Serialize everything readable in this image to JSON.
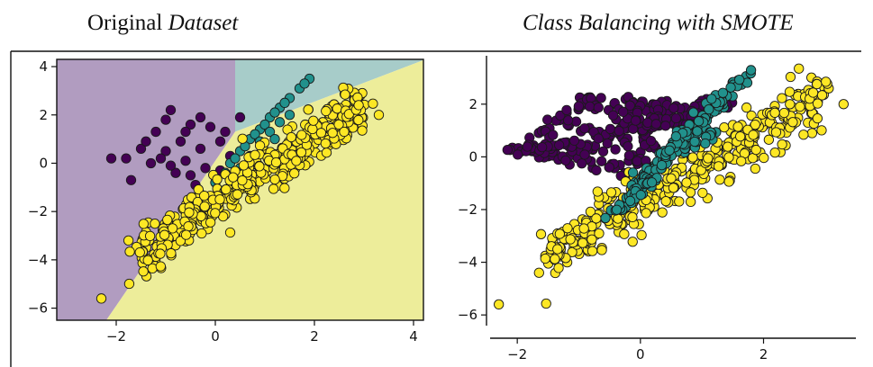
{
  "panels": {
    "left_title_plain": "Original ",
    "left_title_italic": "Dataset",
    "right_title": "Class Balancing with SMOTE"
  },
  "colors": {
    "class_0": "#440154",
    "class_1": "#21918c",
    "class_2": "#fde725",
    "region_0": "#b19cc0",
    "region_1": "#a7ccc9",
    "region_2": "#eded9a"
  },
  "chart_data": [
    {
      "type": "scatter",
      "title": "Original Dataset",
      "xlabel": "",
      "ylabel": "",
      "xlim": [
        -3.2,
        4.2
      ],
      "ylim": [
        -6.5,
        4.3
      ],
      "xticks": [
        -2,
        0,
        2,
        4
      ],
      "yticks": [
        -6,
        -4,
        -2,
        0,
        2,
        4
      ],
      "decision_regions": true,
      "series": [
        {
          "class": 0,
          "points": [
            [
              -0.9,
              2.2
            ],
            [
              -0.5,
              1.6
            ],
            [
              -1.2,
              1.3
            ],
            [
              -0.7,
              0.9
            ],
            [
              -0.3,
              0.6
            ],
            [
              -1.5,
              0.6
            ],
            [
              -1.0,
              0.5
            ],
            [
              -0.6,
              0.1
            ],
            [
              -1.3,
              0.0
            ],
            [
              -0.2,
              -0.2
            ],
            [
              -0.8,
              -0.4
            ],
            [
              -1.8,
              0.2
            ],
            [
              -2.1,
              0.2
            ],
            [
              -1.7,
              -0.7
            ],
            [
              -0.5,
              -0.5
            ],
            [
              0.1,
              -0.3
            ],
            [
              0.2,
              1.3
            ],
            [
              0.5,
              1.9
            ],
            [
              0.1,
              0.9
            ],
            [
              -0.3,
              1.9
            ],
            [
              -1.1,
              0.2
            ],
            [
              -0.4,
              -0.9
            ],
            [
              -0.9,
              -0.1
            ],
            [
              -1.4,
              0.9
            ],
            [
              0.3,
              0.3
            ],
            [
              -0.1,
              1.5
            ],
            [
              -0.6,
              1.3
            ],
            [
              -1.0,
              1.8
            ]
          ]
        },
        {
          "class": 1,
          "points": [
            [
              0.0,
              -0.8
            ],
            [
              0.3,
              0.0
            ],
            [
              0.5,
              0.5
            ],
            [
              0.7,
              1.0
            ],
            [
              0.9,
              1.4
            ],
            [
              1.1,
              1.9
            ],
            [
              1.3,
              2.3
            ],
            [
              1.5,
              2.7
            ],
            [
              1.7,
              3.1
            ],
            [
              1.9,
              3.5
            ],
            [
              1.8,
              3.3
            ],
            [
              0.2,
              -0.4
            ],
            [
              0.4,
              0.2
            ],
            [
              0.6,
              0.7
            ],
            [
              0.8,
              1.2
            ],
            [
              1.0,
              1.6
            ],
            [
              1.2,
              2.1
            ],
            [
              1.4,
              2.5
            ],
            [
              0.9,
              0.9
            ],
            [
              1.1,
              1.3
            ],
            [
              1.3,
              1.7
            ],
            [
              0.5,
              -0.2
            ],
            [
              0.7,
              0.3
            ],
            [
              1.5,
              2.0
            ],
            [
              1.2,
              1.0
            ]
          ]
        },
        {
          "class": 2,
          "line": {
            "x_start": -1.6,
            "x_end": 3.0,
            "y_start": -3.8,
            "y_end": 2.4,
            "spread": 0.9
          },
          "count": 420,
          "outliers": [
            [
              3.3,
              2.0
            ],
            [
              -2.3,
              -5.6
            ]
          ]
        }
      ]
    },
    {
      "type": "scatter",
      "title": "Class Balancing with SMOTE",
      "xlabel": "",
      "ylabel": "",
      "xlim": [
        -2.5,
        3.5
      ],
      "ylim": [
        -6.2,
        3.7
      ],
      "xticks": [
        -2,
        0,
        2
      ],
      "yticks": [
        -6,
        -4,
        -2,
        0,
        2
      ],
      "decision_regions": false,
      "series": [
        {
          "class": 0,
          "segments": [
            [
              [
                -2.0,
                0.2
              ],
              [
                -0.9,
                2.2
              ]
            ],
            [
              [
                -0.9,
                2.2
              ],
              [
                0.5,
                1.9
              ]
            ],
            [
              [
                0.5,
                1.9
              ],
              [
                0.0,
                0.8
              ]
            ],
            [
              [
                -1.2,
                1.3
              ],
              [
                0.3,
                0.3
              ]
            ],
            [
              [
                -1.8,
                0.2
              ],
              [
                -0.3,
                -0.4
              ]
            ],
            [
              [
                -1.0,
                1.8
              ],
              [
                1.5,
                2.0
              ]
            ],
            [
              [
                -1.5,
                0.6
              ],
              [
                0.1,
                -0.3
              ]
            ],
            [
              [
                -0.7,
                0.9
              ],
              [
                1.0,
                1.6
              ]
            ],
            [
              [
                -2.1,
                0.2
              ],
              [
                -1.0,
                0.5
              ]
            ],
            [
              [
                -0.5,
                1.6
              ],
              [
                0.8,
                1.2
              ]
            ]
          ],
          "count": 300
        },
        {
          "class": 1,
          "segments": [
            [
              [
                -0.7,
                -2.5
              ],
              [
                1.9,
                3.4
              ]
            ],
            [
              [
                -0.4,
                -2.1
              ],
              [
                1.4,
                2.3
              ]
            ],
            [
              [
                0.0,
                -0.8
              ],
              [
                1.2,
                1.0
              ]
            ],
            [
              [
                -0.2,
                -1.8
              ],
              [
                0.9,
                0.9
              ]
            ],
            [
              [
                0.3,
                0.0
              ],
              [
                1.7,
                3.1
              ]
            ]
          ],
          "count": 200
        },
        {
          "class": 2,
          "line": {
            "x_start": -1.5,
            "x_end": 3.0,
            "y_start": -3.8,
            "y_end": 2.4,
            "spread": 0.9
          },
          "count": 420,
          "outliers": [
            [
              3.3,
              2.0
            ],
            [
              -2.3,
              -5.6
            ]
          ]
        }
      ]
    }
  ]
}
